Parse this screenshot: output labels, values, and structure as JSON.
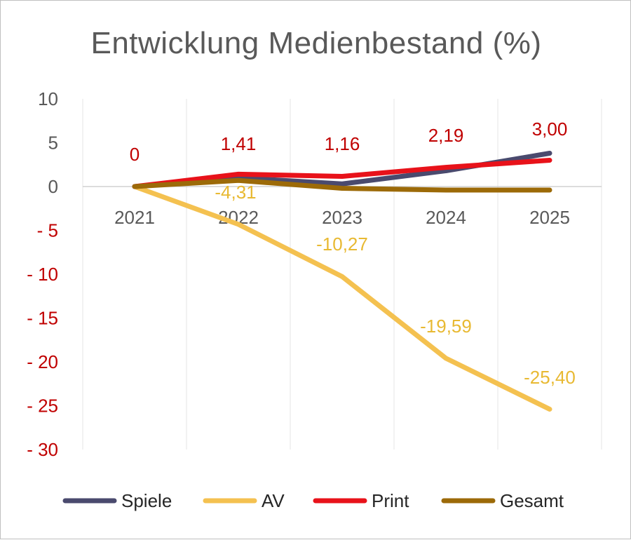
{
  "chart_data": {
    "type": "line",
    "title": "Entwicklung Medienbestand (%)",
    "categories": [
      "2021",
      "2022",
      "2023",
      "2024",
      "2025"
    ],
    "ylim": [
      -30,
      10
    ],
    "y_ticks": [
      10,
      5,
      0,
      -5,
      -10,
      -15,
      -20,
      -25,
      -30
    ],
    "y_tick_labels": [
      "10",
      "5",
      "0",
      "- 5",
      "- 10",
      "- 15",
      "- 20",
      "- 25",
      "- 30"
    ],
    "grid": "vertical",
    "legend_position": "bottom",
    "series": [
      {
        "name": "Spiele",
        "color": "#4a4a6e",
        "values": [
          0,
          1.0,
          0.3,
          1.8,
          3.8
        ]
      },
      {
        "name": "AV",
        "color": "#f4c150",
        "values": [
          0,
          -4.31,
          -10.27,
          -19.59,
          -25.4
        ],
        "data_labels": [
          "",
          "-4,31",
          "-10,27",
          "-19,59",
          "-25,40"
        ],
        "label_color": "#e8b932"
      },
      {
        "name": "Print",
        "color": "#e8121a",
        "values": [
          0,
          1.41,
          1.16,
          2.19,
          3.0
        ],
        "data_labels": [
          "0",
          "1,41",
          "1,16",
          "2,19",
          "3,00"
        ],
        "label_color": "#c00000"
      },
      {
        "name": "Gesamt",
        "color": "#9c6a08",
        "values": [
          0,
          0.7,
          -0.2,
          -0.4,
          -0.4
        ]
      }
    ],
    "colors": {
      "positive_tick": "#595959",
      "negative_tick": "#c00000",
      "grid": "#e6e6e6",
      "zero_axis": "#d0d0d0"
    }
  }
}
